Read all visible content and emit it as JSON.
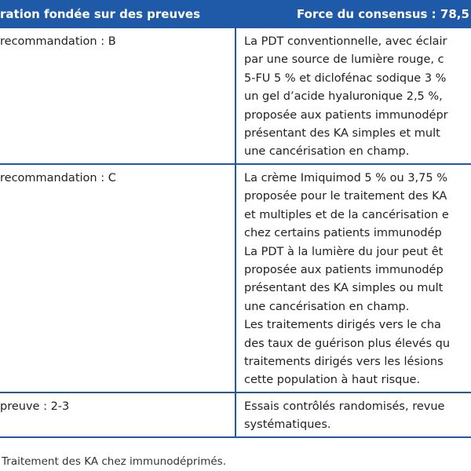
{
  "table": {
    "header": [
      "ration fondée sur des preuves",
      "Force du consensus : 78,5"
    ],
    "rows": [
      [
        [
          "recommandation : B"
        ],
        [
          "La PDT conventionnelle, avec éclair",
          "par une source de lumière rouge, c",
          "5-FU 5 % et diclofénac sodique 3 %",
          "un gel d’acide hyaluronique 2,5 %, ",
          "proposée aux patients immunodépr",
          "présentant des KA simples et mult",
          "une cancérisation en champ."
        ]
      ],
      [
        [
          "recommandation : C"
        ],
        [
          "La crème Imiquimod 5 % ou 3,75 %",
          "proposée pour le traitement des KA",
          "et multiples et de la cancérisation e",
          "chez certains patients immunodép",
          "La PDT à la lumière du jour peut êt",
          "proposée aux patients immunodép",
          "présentant des KA simples ou mult",
          "une cancérisation en champ.",
          "Les traitements dirigés vers le cha",
          "des taux de guérison plus élevés qu",
          "traitements dirigés vers les lésions",
          "cette population à haut risque."
        ]
      ],
      [
        [
          "preuve : 2-3"
        ],
        [
          "Essais contrôlés randomisés, revue",
          "systématiques."
        ]
      ]
    ]
  },
  "caption": "Traitement des KA chez immunodéprimés."
}
